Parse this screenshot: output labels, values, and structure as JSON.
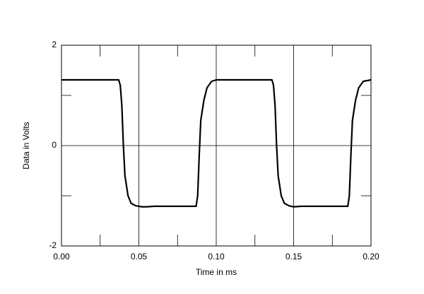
{
  "chart_data": {
    "type": "line",
    "x_label": "Time in ms",
    "y_label": "Data in Volts",
    "xlim": [
      0,
      0.2
    ],
    "ylim": [
      -2,
      2
    ],
    "xticks": [
      {
        "value": 0,
        "label": "0.00"
      },
      {
        "value": 0.05,
        "label": "0.05"
      },
      {
        "value": 0.1,
        "label": "0.10"
      },
      {
        "value": 0.15,
        "label": "0.15"
      },
      {
        "value": 0.2,
        "label": "0.20"
      }
    ],
    "yticks": [
      -2,
      0,
      2
    ],
    "grid": true,
    "x": [
      0,
      0.037,
      0.038,
      0.039,
      0.04,
      0.041,
      0.043,
      0.045,
      0.048,
      0.052,
      0.055,
      0.06,
      0.087,
      0.088,
      0.089,
      0.09,
      0.092,
      0.094,
      0.097,
      0.1,
      0.136,
      0.137,
      0.138,
      0.139,
      0.14,
      0.142,
      0.144,
      0.147,
      0.15,
      0.155,
      0.185,
      0.186,
      0.187,
      0.188,
      0.19,
      0.192,
      0.195,
      0.2
    ],
    "series": [
      {
        "color": "#000000",
        "values": [
          1.31,
          1.31,
          1.2,
          0.8,
          0,
          -0.6,
          -1.0,
          -1.15,
          -1.2,
          -1.22,
          -1.22,
          -1.21,
          -1.21,
          -1.0,
          -0.2,
          0.5,
          0.9,
          1.15,
          1.28,
          1.31,
          1.31,
          1.2,
          0.8,
          0,
          -0.6,
          -1.0,
          -1.15,
          -1.2,
          -1.22,
          -1.21,
          -1.21,
          -1.0,
          -0.2,
          0.5,
          0.9,
          1.15,
          1.28,
          1.31
        ]
      }
    ]
  }
}
